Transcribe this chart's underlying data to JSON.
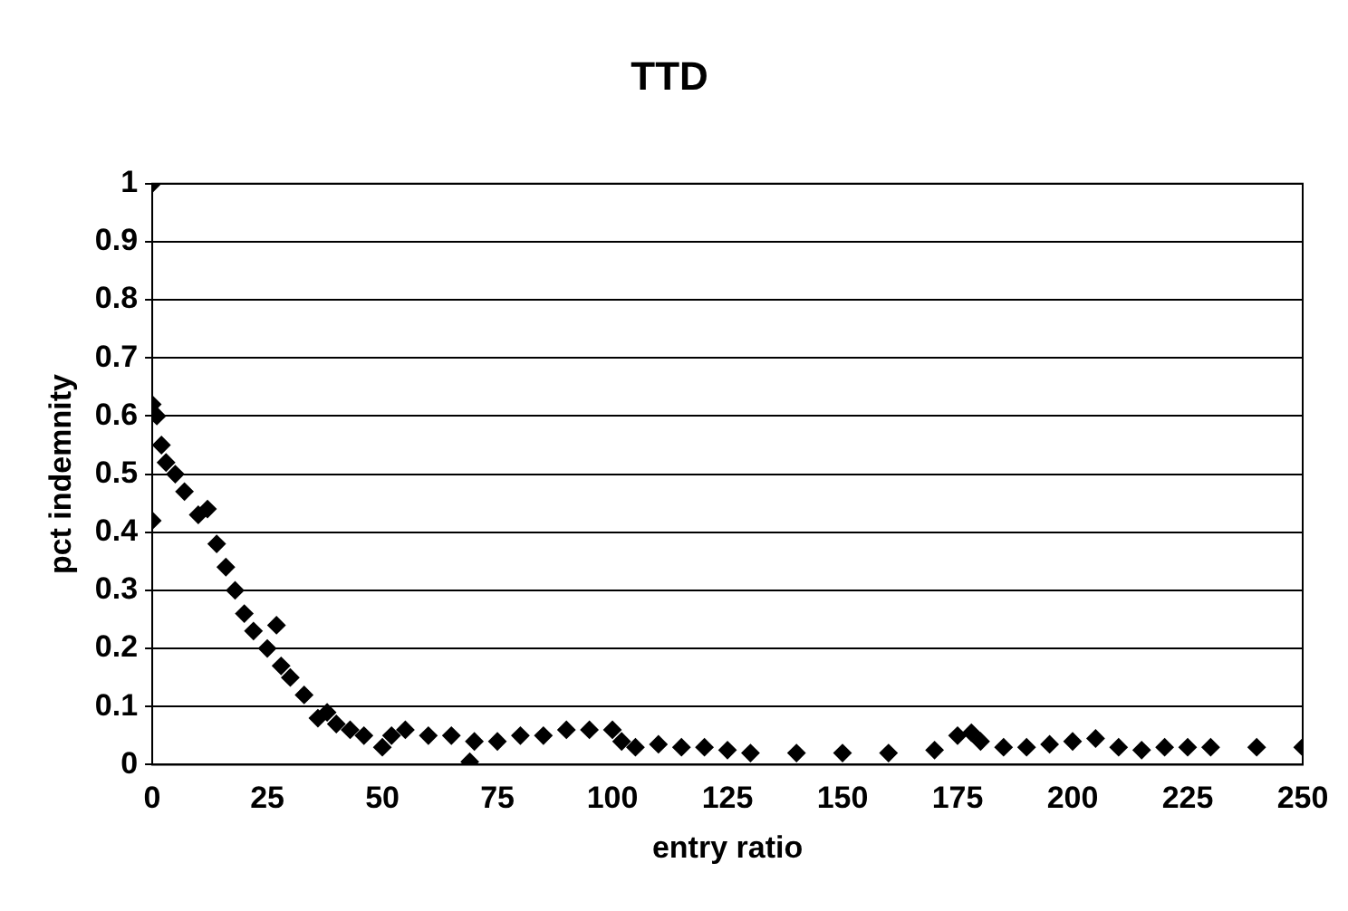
{
  "chart_data": {
    "type": "scatter",
    "title": "TTD",
    "xlabel": "entry ratio",
    "ylabel": "pct indemnity",
    "xlim": [
      0,
      250
    ],
    "ylim": [
      0,
      1
    ],
    "xticks": [
      0,
      25,
      50,
      75,
      100,
      125,
      150,
      175,
      200,
      225,
      250
    ],
    "yticks": [
      0,
      0.1,
      0.2,
      0.3,
      0.4,
      0.5,
      0.6,
      0.7,
      0.8,
      0.9,
      1
    ],
    "grid": "y",
    "legend": false,
    "marker": "diamond",
    "series": [
      {
        "color": "#000000",
        "x": [
          0,
          0,
          0,
          1,
          2,
          3,
          5,
          7,
          10,
          12,
          14,
          16,
          18,
          20,
          22,
          25,
          27,
          28,
          30,
          33,
          36,
          38,
          40,
          43,
          46,
          50,
          52,
          55,
          60,
          65,
          69,
          70,
          75,
          80,
          85,
          90,
          95,
          100,
          102,
          105,
          110,
          115,
          120,
          125,
          130,
          140,
          150,
          160,
          170,
          175,
          178,
          180,
          185,
          190,
          195,
          200,
          205,
          210,
          215,
          220,
          225,
          230,
          240,
          250
        ],
        "values": [
          1,
          0.62,
          0.42,
          0.6,
          0.55,
          0.52,
          0.5,
          0.47,
          0.43,
          0.44,
          0.38,
          0.34,
          0.3,
          0.26,
          0.23,
          0.2,
          0.24,
          0.17,
          0.15,
          0.12,
          0.08,
          0.09,
          0.07,
          0.06,
          0.05,
          0.03,
          0.05,
          0.06,
          0.05,
          0.05,
          0.005,
          0.04,
          0.04,
          0.05,
          0.05,
          0.06,
          0.06,
          0.06,
          0.04,
          0.03,
          0.035,
          0.03,
          0.03,
          0.025,
          0.02,
          0.02,
          0.02,
          0.02,
          0.025,
          0.05,
          0.055,
          0.04,
          0.03,
          0.03,
          0.035,
          0.04,
          0.045,
          0.03,
          0.025,
          0.03,
          0.03,
          0.03,
          0.03,
          0.03
        ]
      }
    ]
  }
}
